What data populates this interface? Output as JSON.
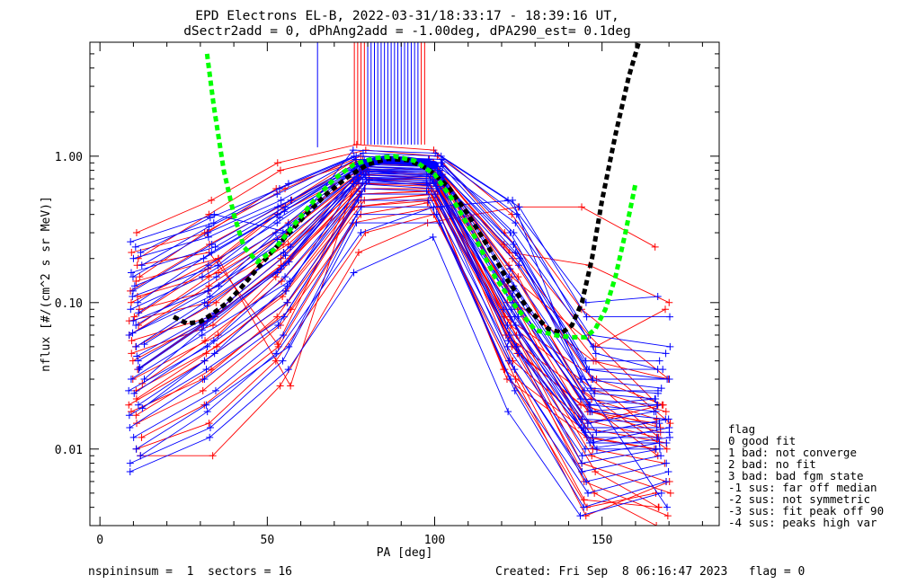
{
  "chart_data": {
    "type": "line",
    "title": "EPD Electrons EL-B, 2022-03-31/18:33:17 - 18:39:16 UT,",
    "subtitle": "dSectr2add = 0, dPhAng2add = -1.00deg, dPA290_est=   0.1deg",
    "xlabel": "PA [deg]",
    "ylabel": "nflux [#/(cm^2 s sr MeV)]",
    "xlim": [
      -3,
      185
    ],
    "ylim": [
      0.003,
      6.0
    ],
    "yscale": "log",
    "x_ticks": [
      {
        "v": 0,
        "label": "0"
      },
      {
        "v": 50,
        "label": "50"
      },
      {
        "v": 100,
        "label": "100"
      },
      {
        "v": 150,
        "label": "150"
      }
    ],
    "y_ticks": [
      {
        "v": 0.01,
        "label": "0.01"
      },
      {
        "v": 0.1,
        "label": "0.10"
      },
      {
        "v": 1.0,
        "label": "1.00"
      }
    ],
    "pa_bins": [
      11,
      33,
      55,
      78,
      100,
      123,
      146,
      168
    ],
    "center_pa": [
      78,
      100
    ],
    "colors": {
      "red": "#ff0000",
      "blue": "#0000ff",
      "green": "#00ff00",
      "black": "#000000"
    },
    "red_curves": [
      [
        0.3,
        0.5,
        0.9,
        1.2,
        1.1,
        0.4,
        0.09,
        0.03
      ],
      [
        0.2,
        0.4,
        0.8,
        1.1,
        1.0,
        0.3,
        0.06,
        0.02
      ],
      [
        0.15,
        0.3,
        0.6,
        1.0,
        0.95,
        0.25,
        0.04,
        0.015
      ],
      [
        0.12,
        0.25,
        0.5,
        0.95,
        0.9,
        0.2,
        0.03,
        0.012
      ],
      [
        0.1,
        0.2,
        0.45,
        0.9,
        0.85,
        0.18,
        0.025,
        0.01
      ],
      [
        0.08,
        0.17,
        0.4,
        0.85,
        0.8,
        0.15,
        0.02,
        0.009
      ],
      [
        0.07,
        0.15,
        0.35,
        0.8,
        0.78,
        0.13,
        0.018,
        0.015
      ],
      [
        0.06,
        0.13,
        0.3,
        0.78,
        0.75,
        0.12,
        0.015,
        0.02
      ],
      [
        0.05,
        0.1,
        0.25,
        0.75,
        0.72,
        0.1,
        0.012,
        0.01
      ],
      [
        0.04,
        0.08,
        0.2,
        0.7,
        0.7,
        0.09,
        0.01,
        0.008
      ],
      [
        0.035,
        0.07,
        0.18,
        0.65,
        0.65,
        0.08,
        0.009,
        0.006
      ],
      [
        0.03,
        0.06,
        0.15,
        0.6,
        0.6,
        0.07,
        0.008,
        0.005
      ],
      [
        0.025,
        0.05,
        0.12,
        0.55,
        0.58,
        0.06,
        0.007,
        0.004
      ],
      [
        0.02,
        0.04,
        0.1,
        0.5,
        0.55,
        0.05,
        0.006,
        0.0035
      ],
      [
        0.018,
        0.03,
        0.08,
        0.45,
        0.5,
        0.045,
        0.005,
        0.003
      ],
      [
        0.015,
        0.025,
        0.07,
        0.4,
        0.48,
        0.04,
        0.0045,
        0.004
      ],
      [
        0.012,
        0.02,
        0.05,
        0.35,
        0.45,
        0.035,
        0.004,
        0.005
      ],
      [
        0.01,
        0.015,
        0.04,
        0.3,
        0.4,
        0.03,
        0.0035,
        0.006
      ],
      [
        0.009,
        0.009,
        0.027,
        0.22,
        0.35,
        0.45,
        0.45,
        0.24
      ],
      [
        0.22,
        0.3,
        0.6,
        0.95,
        0.9,
        0.22,
        0.18,
        0.1
      ],
      [
        0.18,
        0.22,
        0.052,
        0.9,
        0.85,
        0.15,
        0.05,
        0.09
      ],
      [
        0.14,
        0.2,
        0.027,
        0.85,
        0.8,
        0.1,
        0.04,
        0.03
      ],
      [
        0.11,
        0.16,
        0.3,
        0.8,
        0.75,
        0.08,
        0.03,
        0.02
      ],
      [
        0.09,
        0.12,
        0.25,
        0.75,
        0.7,
        0.07,
        0.025,
        0.018
      ],
      [
        0.075,
        0.1,
        0.22,
        0.7,
        0.65,
        0.06,
        0.022,
        0.016
      ],
      [
        0.055,
        0.08,
        0.2,
        0.65,
        0.62,
        0.05,
        0.02,
        0.014
      ],
      [
        0.045,
        0.07,
        0.17,
        0.6,
        0.6,
        0.045,
        0.018,
        0.013
      ],
      [
        0.028,
        0.055,
        0.14,
        0.55,
        0.58,
        0.04,
        0.016,
        0.012
      ],
      [
        0.022,
        0.045,
        0.11,
        0.5,
        0.55,
        0.035,
        0.014,
        0.011
      ],
      [
        0.017,
        0.035,
        0.09,
        0.45,
        0.52,
        0.03,
        0.012,
        0.01
      ]
    ],
    "blue_curves": [
      [
        0.26,
        0.4,
        0.3,
        1.1,
        1.05,
        0.5,
        0.1,
        0.11
      ],
      [
        0.22,
        0.38,
        0.6,
        1.05,
        1.0,
        0.45,
        0.08,
        0.08
      ],
      [
        0.18,
        0.33,
        0.55,
        1.0,
        0.95,
        0.35,
        0.06,
        0.05
      ],
      [
        0.15,
        0.3,
        0.5,
        0.95,
        0.9,
        0.3,
        0.05,
        0.045
      ],
      [
        0.12,
        0.25,
        0.45,
        0.9,
        0.85,
        0.25,
        0.04,
        0.04
      ],
      [
        0.1,
        0.22,
        0.4,
        0.85,
        0.8,
        0.22,
        0.035,
        0.035
      ],
      [
        0.085,
        0.18,
        0.35,
        0.82,
        0.78,
        0.18,
        0.03,
        0.03
      ],
      [
        0.07,
        0.15,
        0.3,
        0.8,
        0.75,
        0.15,
        0.025,
        0.025
      ],
      [
        0.06,
        0.12,
        0.26,
        0.78,
        0.72,
        0.13,
        0.02,
        0.022
      ],
      [
        0.05,
        0.1,
        0.22,
        0.75,
        0.7,
        0.11,
        0.018,
        0.02
      ],
      [
        0.04,
        0.08,
        0.18,
        0.72,
        0.68,
        0.09,
        0.015,
        0.018
      ],
      [
        0.035,
        0.07,
        0.16,
        0.7,
        0.65,
        0.08,
        0.013,
        0.016
      ],
      [
        0.03,
        0.06,
        0.14,
        0.68,
        0.62,
        0.07,
        0.011,
        0.014
      ],
      [
        0.025,
        0.05,
        0.12,
        0.65,
        0.6,
        0.06,
        0.01,
        0.012
      ],
      [
        0.02,
        0.04,
        0.1,
        0.6,
        0.58,
        0.05,
        0.009,
        0.011
      ],
      [
        0.017,
        0.035,
        0.08,
        0.55,
        0.55,
        0.045,
        0.008,
        0.01
      ],
      [
        0.014,
        0.03,
        0.07,
        0.5,
        0.5,
        0.04,
        0.007,
        0.009
      ],
      [
        0.012,
        0.025,
        0.06,
        0.45,
        0.45,
        0.035,
        0.006,
        0.008
      ],
      [
        0.01,
        0.02,
        0.05,
        0.4,
        0.4,
        0.03,
        0.005,
        0.007
      ],
      [
        0.008,
        0.014,
        0.04,
        0.35,
        0.35,
        0.025,
        0.004,
        0.006
      ],
      [
        0.007,
        0.012,
        0.035,
        0.16,
        0.28,
        0.018,
        0.0035,
        0.005
      ],
      [
        0.009,
        0.018,
        0.045,
        0.3,
        0.45,
        0.5,
        0.03,
        0.004
      ],
      [
        0.24,
        0.35,
        0.65,
        1.0,
        0.95,
        0.4,
        0.045,
        0.035
      ],
      [
        0.2,
        0.28,
        0.5,
        0.95,
        0.9,
        0.3,
        0.035,
        0.03
      ],
      [
        0.16,
        0.24,
        0.45,
        0.9,
        0.88,
        0.25,
        0.03,
        0.026
      ],
      [
        0.13,
        0.2,
        0.42,
        0.88,
        0.85,
        0.2,
        0.026,
        0.024
      ],
      [
        0.11,
        0.18,
        0.38,
        0.85,
        0.82,
        0.17,
        0.024,
        0.022
      ],
      [
        0.09,
        0.15,
        0.34,
        0.82,
        0.8,
        0.14,
        0.022,
        0.02
      ],
      [
        0.075,
        0.13,
        0.3,
        0.8,
        0.78,
        0.12,
        0.02,
        0.018
      ],
      [
        0.062,
        0.11,
        0.27,
        0.78,
        0.76,
        0.1,
        0.018,
        0.016
      ],
      [
        0.052,
        0.095,
        0.24,
        0.76,
        0.74,
        0.09,
        0.016,
        0.015
      ],
      [
        0.043,
        0.085,
        0.21,
        0.74,
        0.72,
        0.08,
        0.014,
        0.014
      ],
      [
        0.036,
        0.075,
        0.19,
        0.72,
        0.7,
        0.07,
        0.013,
        0.013
      ],
      [
        0.03,
        0.065,
        0.17,
        0.7,
        0.68,
        0.06,
        0.012,
        0.012
      ],
      [
        0.024,
        0.055,
        0.15,
        0.68,
        0.66,
        0.055,
        0.011,
        0.011
      ],
      [
        0.019,
        0.045,
        0.13,
        0.66,
        0.64,
        0.05,
        0.01,
        0.01
      ]
    ],
    "blue_band": {
      "pa": [
        78,
        85,
        92,
        100
      ],
      "y": [
        0.88,
        0.95,
        0.93,
        0.87
      ]
    },
    "green_fit": {
      "pa": [
        32,
        34,
        37,
        40,
        43,
        47,
        52,
        58,
        64,
        70,
        76,
        82,
        88,
        94,
        100,
        106,
        112,
        118,
        124,
        130,
        136,
        141,
        145,
        148,
        151,
        154,
        157,
        160
      ],
      "y": [
        5.0,
        2.2,
        0.8,
        0.4,
        0.24,
        0.19,
        0.23,
        0.34,
        0.5,
        0.7,
        0.88,
        0.97,
        1.0,
        0.93,
        0.75,
        0.48,
        0.28,
        0.15,
        0.095,
        0.065,
        0.06,
        0.058,
        0.058,
        0.066,
        0.09,
        0.15,
        0.3,
        0.65
      ]
    },
    "black_fit": {
      "pa": [
        22,
        26,
        30,
        34,
        38,
        42,
        46,
        50,
        56,
        62,
        68,
        74,
        80,
        86,
        92,
        98,
        104,
        110,
        116,
        122,
        128,
        134,
        138,
        141,
        144,
        147,
        150,
        154,
        158,
        161
      ],
      "y": [
        0.08,
        0.072,
        0.074,
        0.085,
        0.1,
        0.125,
        0.16,
        0.205,
        0.29,
        0.41,
        0.56,
        0.72,
        0.88,
        0.96,
        0.94,
        0.82,
        0.62,
        0.4,
        0.24,
        0.14,
        0.09,
        0.066,
        0.062,
        0.07,
        0.1,
        0.2,
        0.5,
        1.4,
        3.5,
        6.0
      ]
    },
    "spikes": {
      "blue_pa": [
        65,
        80,
        81,
        82,
        83,
        84,
        85,
        86,
        87,
        88,
        89,
        90,
        91,
        92,
        93,
        94,
        95
      ],
      "red_pa": [
        76,
        77,
        78,
        79,
        96,
        97
      ],
      "top_y": 6.0,
      "bottom_y": 1.2
    }
  },
  "legend": {
    "header": "flag",
    "items": [
      {
        "text": " 0 good fit",
        "color": "#000000"
      },
      {
        "text": " 1 bad: not converge",
        "color": "#000000"
      },
      {
        "text": " 2 bad: no fit",
        "color": "#000000"
      },
      {
        "text": " 3 bad: bad fgm state",
        "color": "#000000"
      },
      {
        "text": "-1 sus: far off median",
        "color": "#000000"
      },
      {
        "text": "-2 sus: not symmetric",
        "color": "#000000"
      },
      {
        "text": "-3 sus: fit peak off 90",
        "color": "#000000"
      },
      {
        "text": "-4 sus: peaks high var",
        "color": "#000000"
      }
    ]
  },
  "footer": {
    "left": "nspininsum =  1  sectors = 16",
    "right": "Created: Fri Sep  8 06:16:47 2023   flag = 0"
  }
}
